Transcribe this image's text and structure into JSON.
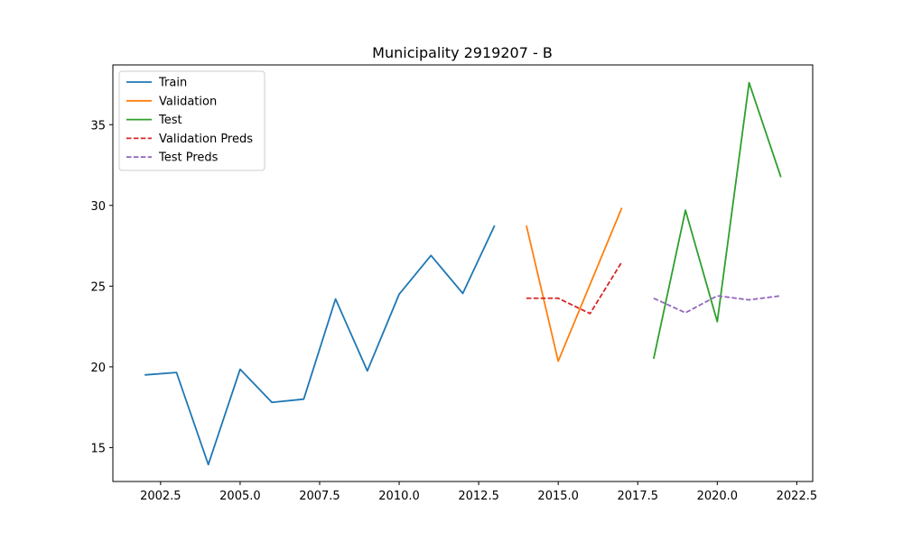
{
  "chart_data": {
    "type": "line",
    "title": "Municipality 2919207 - B",
    "xlabel": "",
    "ylabel": "",
    "xlim": [
      2001.0,
      2023.0
    ],
    "ylim": [
      12.9,
      38.7
    ],
    "xticks": [
      2002.5,
      2005.0,
      2007.5,
      2010.0,
      2012.5,
      2015.0,
      2017.5,
      2020.0,
      2022.5
    ],
    "xtick_labels": [
      "2002.5",
      "2005.0",
      "2007.5",
      "2010.0",
      "2012.5",
      "2015.0",
      "2017.5",
      "2020.0",
      "2022.5"
    ],
    "yticks": [
      15,
      20,
      25,
      30,
      35
    ],
    "ytick_labels": [
      "15",
      "20",
      "25",
      "30",
      "35"
    ],
    "grid": false,
    "legend_position": "top-left",
    "series": [
      {
        "name": "Train",
        "color": "#1f77b4",
        "dash": "solid",
        "x": [
          2002,
          2003,
          2004,
          2005,
          2006,
          2007,
          2008,
          2009,
          2010,
          2011,
          2012,
          2013
        ],
        "y": [
          19.5,
          19.65,
          13.95,
          19.85,
          17.8,
          18.0,
          24.2,
          19.75,
          24.5,
          26.9,
          24.55,
          28.75
        ]
      },
      {
        "name": "Validation",
        "color": "#ff7f0e",
        "dash": "solid",
        "x": [
          2014,
          2015,
          2016,
          2017
        ],
        "y": [
          28.75,
          20.35,
          25.1,
          29.85
        ]
      },
      {
        "name": "Test",
        "color": "#2ca02c",
        "dash": "solid",
        "x": [
          2018,
          2019,
          2020,
          2021,
          2022
        ],
        "y": [
          20.5,
          29.7,
          22.8,
          37.6,
          31.75
        ]
      },
      {
        "name": "Validation Preds",
        "color": "#d62728",
        "dash": "dashed",
        "x": [
          2014,
          2015,
          2016,
          2017
        ],
        "y": [
          24.25,
          24.25,
          23.3,
          26.5
        ]
      },
      {
        "name": "Test Preds",
        "color": "#9467bd",
        "dash": "dashed",
        "x": [
          2018,
          2019,
          2020,
          2021,
          2022
        ],
        "y": [
          24.25,
          23.35,
          24.4,
          24.15,
          24.4
        ]
      }
    ]
  }
}
